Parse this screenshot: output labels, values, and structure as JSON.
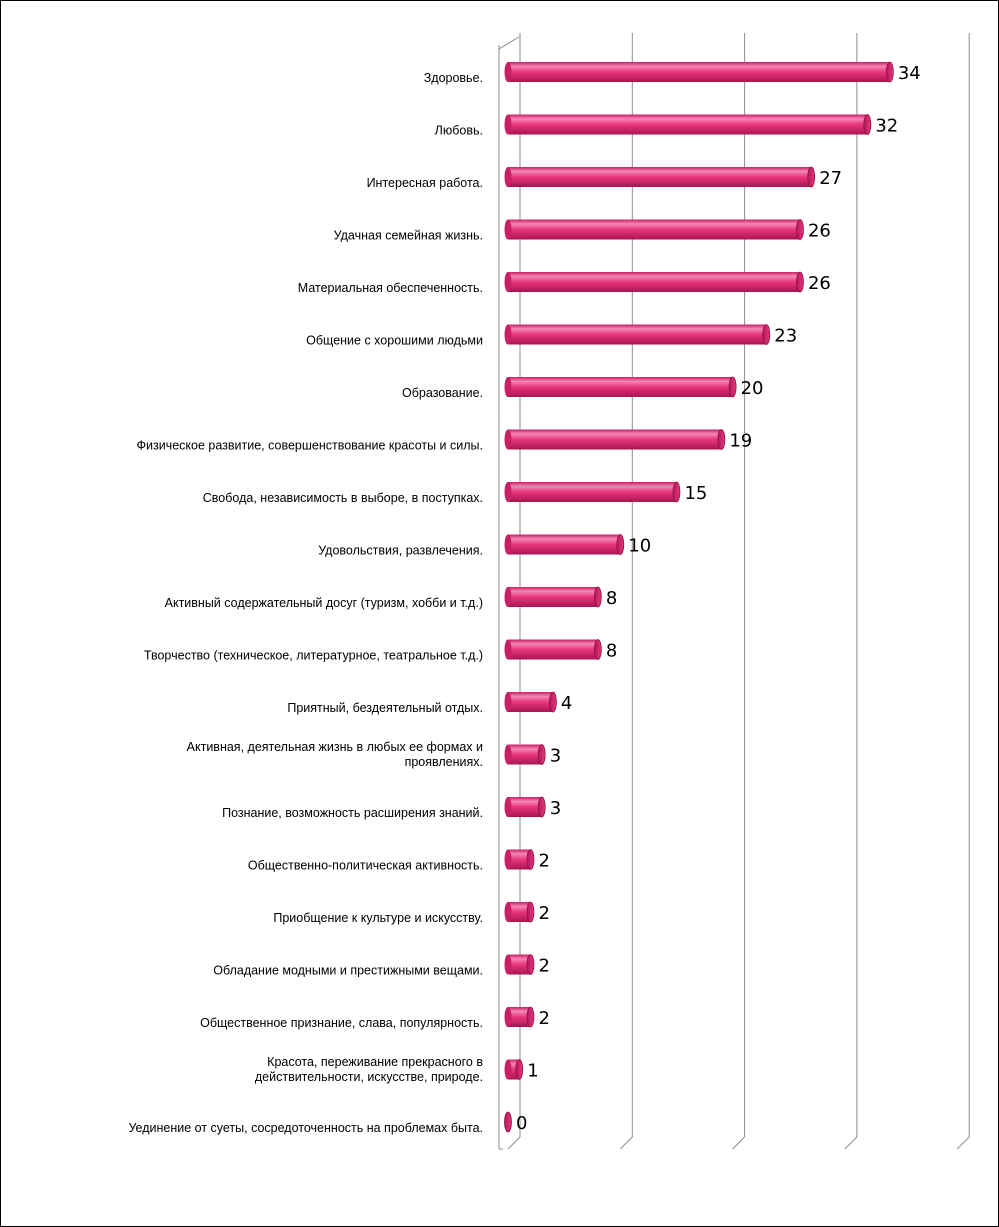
{
  "chart_data": {
    "type": "bar",
    "orientation": "horizontal",
    "style": "3d-cylinder",
    "bar_color": "#e8357f",
    "grid": true,
    "xlim": [
      0,
      40
    ],
    "categories": [
      "Здоровье.",
      "Любовь.",
      "Интересная работа.",
      "Удачная семейная жизнь.",
      "Материальная обеспеченность.",
      "Общение с хорошими людьми",
      "Образование.",
      "Физическое развитие, совершенствование красоты и силы.",
      "Свобода, независимость в выборе, в поступках.",
      "Удовольствия, развлечения.",
      "Активный содержательный досуг (туризм, хобби и т.д.)",
      "Творчество (техническое, литературное, театральное т.д.)",
      "Приятный, бездеятельный отдых.",
      "Активная, деятельная жизнь в любых ее формах и проявлениях.",
      "Познание, возможность расширения знаний.",
      "Общественно-политическая активность.",
      "Приобщение к культуре и искусству.",
      "Обладание модными и престижными вещами.",
      "Общественное признание, слава, популярность.",
      "Красота, переживание прекрасного в действительности, искусстве, природе.",
      "Уединение от суеты, сосредоточенность на проблемах быта."
    ],
    "category_lines": [
      [
        "Здоровье."
      ],
      [
        "Любовь."
      ],
      [
        "Интересная работа."
      ],
      [
        "Удачная семейная жизнь."
      ],
      [
        "Материальная обеспеченность."
      ],
      [
        "Общение с хорошими людьми"
      ],
      [
        "Образование."
      ],
      [
        "Физическое развитие, совершенствование красоты и силы."
      ],
      [
        "Свобода, независимость в выборе, в поступках."
      ],
      [
        "Удовольствия, развлечения."
      ],
      [
        "Активный содержательный досуг (туризм, хобби и т.д.)"
      ],
      [
        "Творчество (техническое, литературное, театральное т.д.)"
      ],
      [
        "Приятный, бездеятельный отдых."
      ],
      [
        "Активная, деятельная жизнь в любых ее формах и",
        "проявлениях."
      ],
      [
        "Познание, возможность расширения знаний."
      ],
      [
        "Общественно-политическая активность."
      ],
      [
        "Приобщение к культуре и искусству."
      ],
      [
        "Обладание модными и престижными вещами."
      ],
      [
        "Общественное признание, слава, популярность."
      ],
      [
        "Красота, переживание прекрасного в",
        "действительности, искусстве, природе."
      ],
      [
        "Уединение от суеты, сосредоточенность на проблемах быта."
      ]
    ],
    "values": [
      34,
      32,
      27,
      26,
      26,
      23,
      20,
      19,
      15,
      10,
      8,
      8,
      4,
      3,
      3,
      2,
      2,
      2,
      2,
      1,
      0
    ]
  }
}
